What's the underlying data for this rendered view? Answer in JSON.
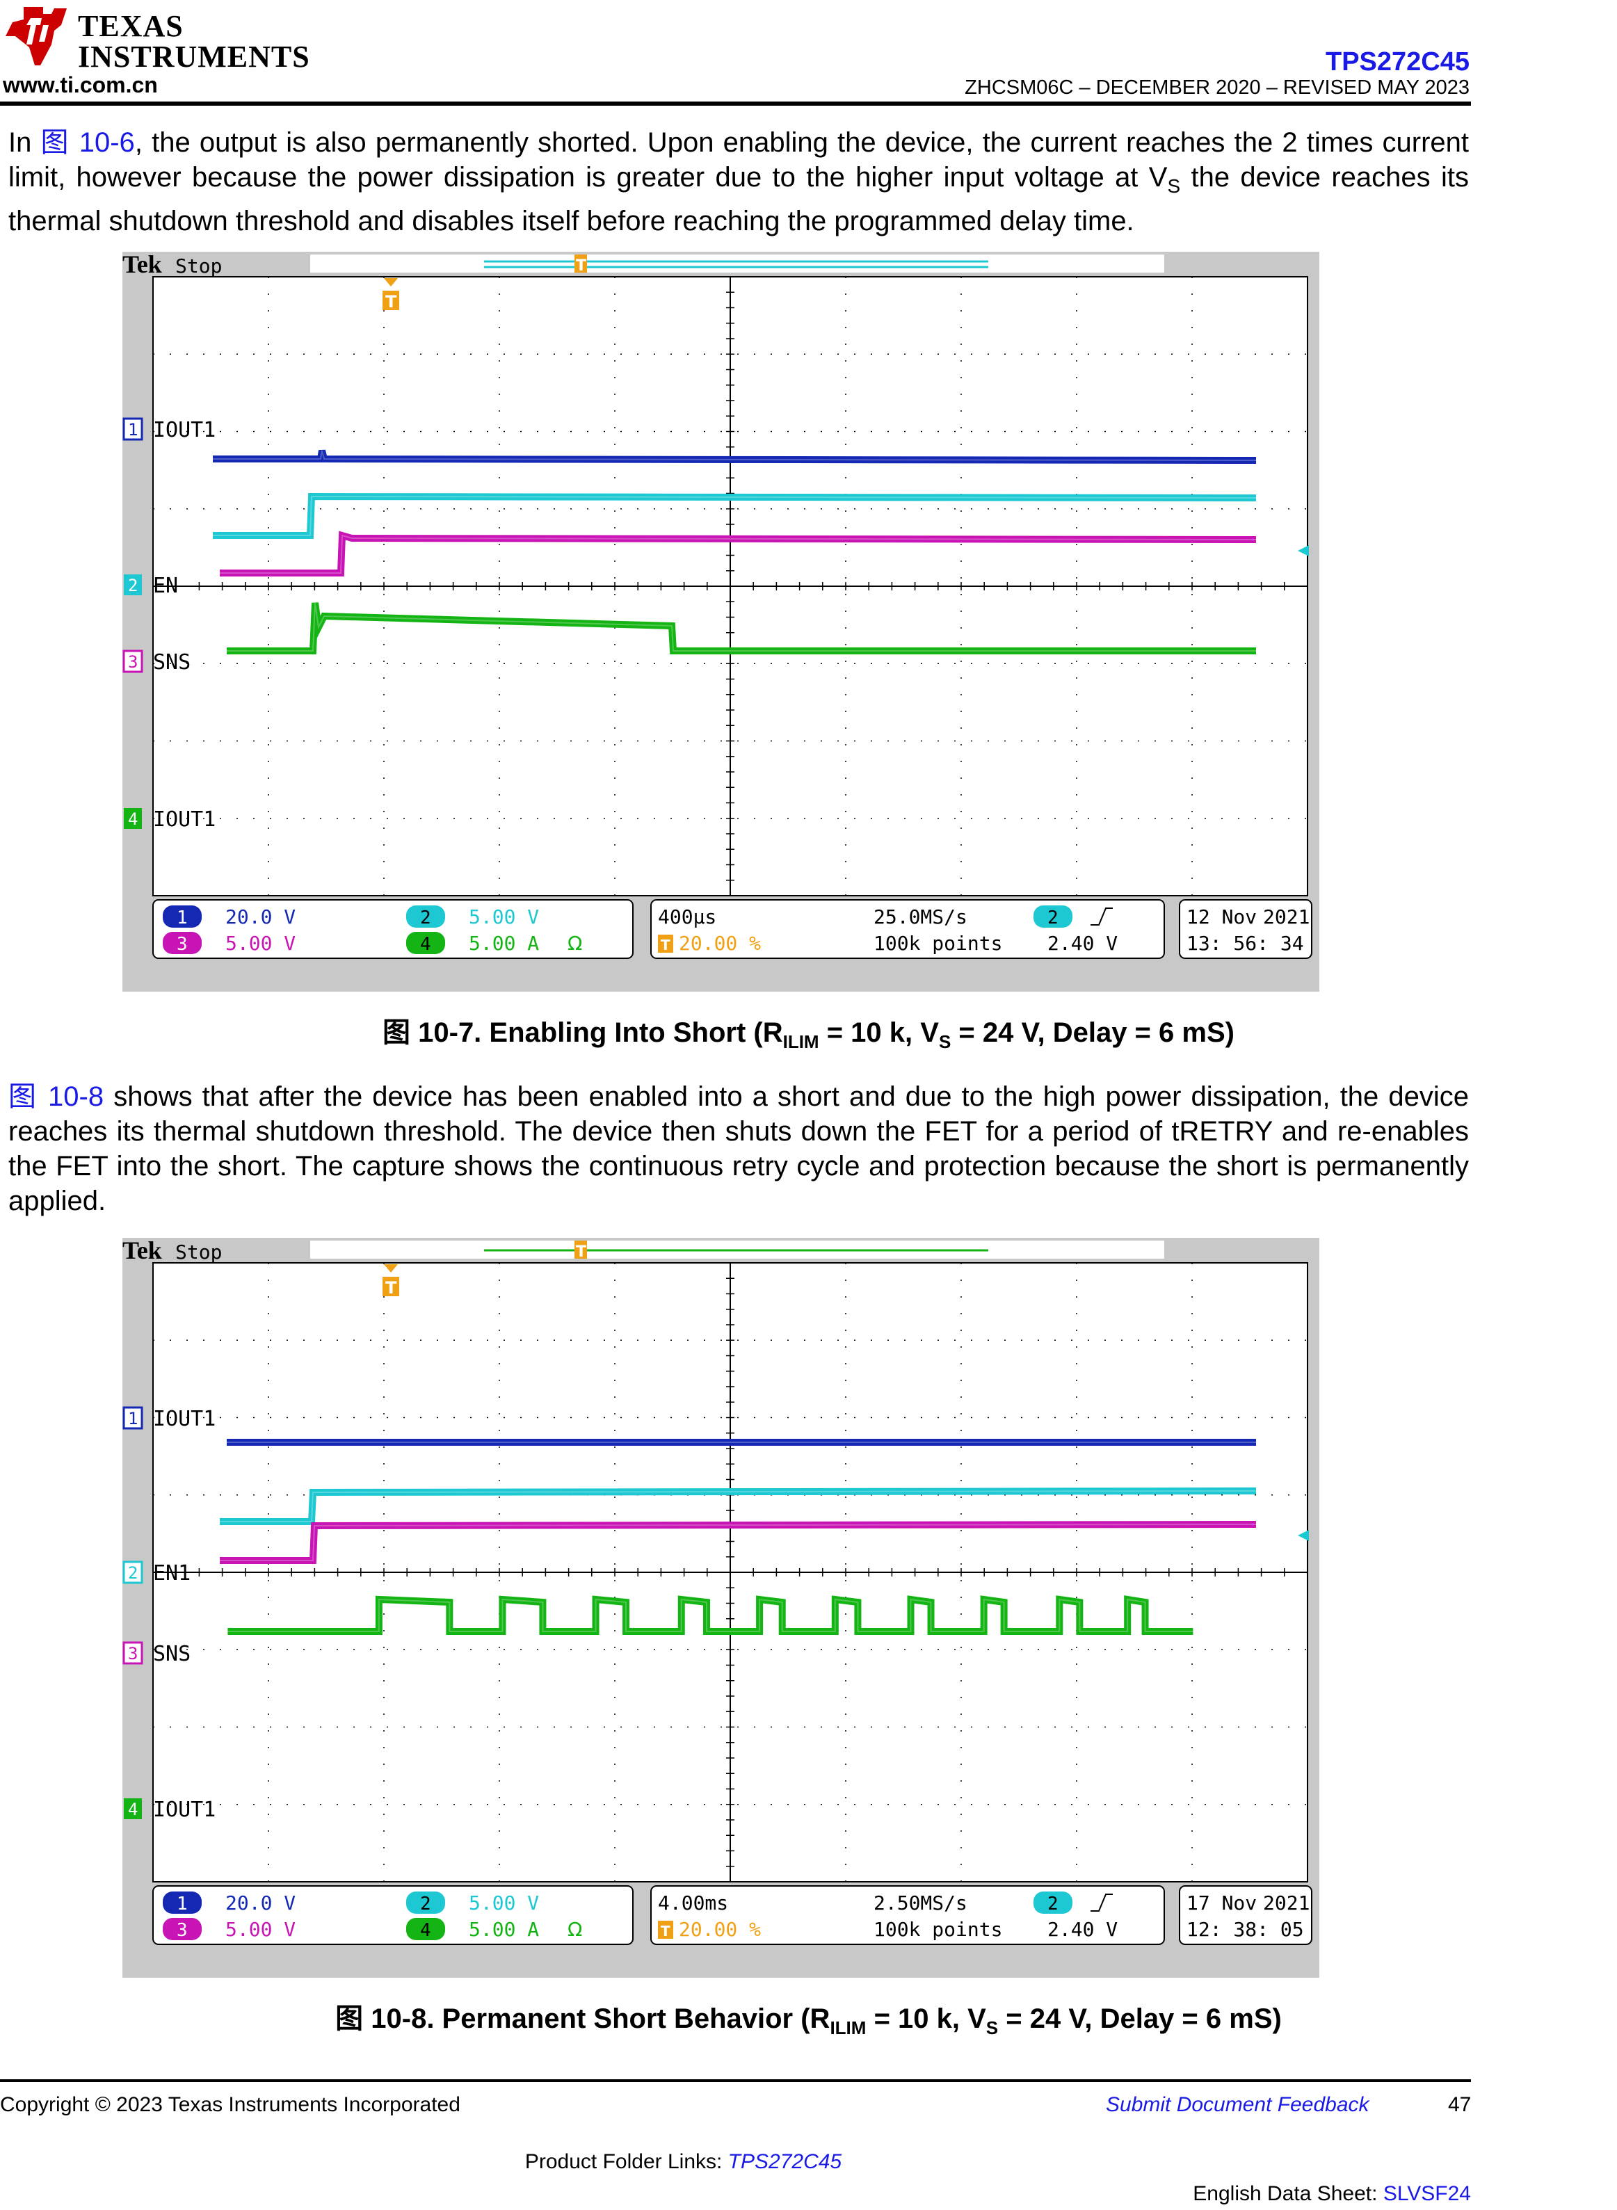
{
  "header": {
    "logo_line1": "TEXAS",
    "logo_line2": "INSTRUMENTS",
    "website": "www.ti.com.cn",
    "part_number": "TPS272C45",
    "doc_info": "ZHCSM06C – DECEMBER 2020 – REVISED MAY 2023"
  },
  "para1": {
    "pre": "In ",
    "ref": "图 10-6",
    "text_a": ", the output is also permanently shorted. Upon enabling the device, the current reaches the 2 times current limit, however because the power dissipation is greater due to the higher input voltage at V",
    "sub": "S",
    "text_b": " the device reaches its thermal shutdown threshold and disables itself before reaching the programmed delay time."
  },
  "figure1": {
    "brand": "Tek",
    "status": "Stop",
    "ch_labels": [
      "1",
      "2",
      "3",
      "4"
    ],
    "trace_labels": [
      "IOUT1",
      "EN",
      "SNS",
      "IOUT1"
    ],
    "trigger_marker": "T",
    "scale": {
      "ch1": "20.0 V",
      "ch2": "5.00 V",
      "ch3": "5.00 V",
      "ch4": "5.00 A",
      "ohm": "Ω",
      "timebase": "400µs",
      "sample_rate": "25.0MS/s",
      "trig_pos": "20.00 %",
      "record": "100k points",
      "trig_ch": "2",
      "trig_level": "2.40 V",
      "date": "12 Nov",
      "year": "2021",
      "time": "13: 56: 34"
    },
    "caption_pre": "图 10-7. Enabling Into Short (R",
    "caption_sub1": "ILIM",
    "caption_mid": " = 10 k, V",
    "caption_sub2": "S",
    "caption_post": " = 24 V, Delay = 6 mS)"
  },
  "para2": {
    "ref": "图 10-8",
    "text": " shows that after the device has been enabled into a short and due to the high power dissipation, the device reaches its thermal shutdown threshold. The device then shuts down the FET for a period of tRETRY and re-enables the FET into the short. The capture shows the continuous retry cycle and protection because the short is permanently applied."
  },
  "figure2": {
    "brand": "Tek",
    "status": "Stop",
    "ch_labels": [
      "1",
      "2",
      "3",
      "4"
    ],
    "trace_labels": [
      "IOUT1",
      "EN1",
      "SNS",
      "IOUT1"
    ],
    "trigger_marker": "T",
    "scale": {
      "ch1": "20.0 V",
      "ch2": "5.00 V",
      "ch3": "5.00 V",
      "ch4": "5.00 A",
      "ohm": "Ω",
      "timebase": "4.00ms",
      "sample_rate": "2.50MS/s",
      "trig_pos": "20.00 %",
      "record": "100k points",
      "trig_ch": "2",
      "trig_level": "2.40 V",
      "date": "17 Nov",
      "year": "2021",
      "time": "12: 38: 05"
    },
    "caption_pre": "图 10-8. Permanent Short Behavior (R",
    "caption_sub1": "ILIM",
    "caption_mid": " = 10 k, V",
    "caption_sub2": "S",
    "caption_post": " = 24 V, Delay = 6 mS)"
  },
  "footer": {
    "copyright": "Copyright © 2023 Texas Instruments Incorporated",
    "feedback": "Submit Document Feedback",
    "page": "47",
    "folder_label": "Product Folder Links: ",
    "folder_link": "TPS272C45",
    "datasheet_label": "English Data Sheet: ",
    "datasheet_link": "SLVSF24"
  },
  "colors": {
    "ch1": "#1428b4",
    "ch2": "#1ec8d2",
    "ch3": "#c814b4",
    "ch4": "#14b414",
    "trigger": "#f0a014",
    "link": "#1a1ae6",
    "ti_red": "#cc0000"
  }
}
